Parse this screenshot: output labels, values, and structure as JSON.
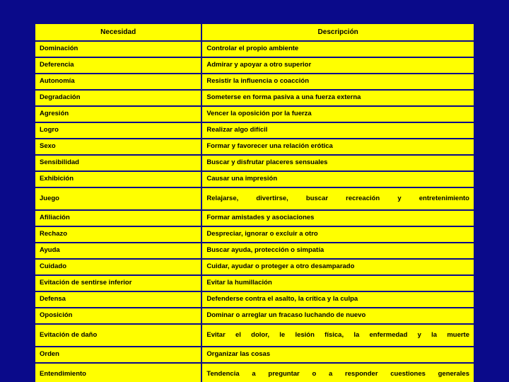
{
  "table": {
    "type": "table",
    "background_color": "#0a0a8a",
    "cell_bg_color": "#ffff00",
    "border_color": "#0a0a8a",
    "text_color": "#000000",
    "font_family": "Verdana",
    "header_fontsize_pt": 10,
    "body_fontsize_pt": 9.5,
    "font_weight": "bold",
    "columns": [
      {
        "key": "need",
        "label": "Necesidad",
        "width_pct": 38
      },
      {
        "key": "desc",
        "label": "Descripción",
        "width_pct": 62
      }
    ],
    "rows": [
      {
        "need": "Dominación",
        "desc": "Controlar el propio ambiente"
      },
      {
        "need": "Deferencia",
        "desc": "Admirar y apoyar a otro superior"
      },
      {
        "need": "Autonomía",
        "desc": "Resistir la influencia o coacción"
      },
      {
        "need": "Degradación",
        "desc": "Someterse en forma pasiva a una fuerza externa"
      },
      {
        "need": "Agresión",
        "desc": "Vencer la oposición por la fuerza"
      },
      {
        "need": "Logro",
        "desc": "Realizar algo difícil"
      },
      {
        "need": "Sexo",
        "desc": "Formar y favorecer una relación erótica"
      },
      {
        "need": "Sensibilidad",
        "desc": "Buscar y disfrutar placeres sensuales"
      },
      {
        "need": "Exhibición",
        "desc": "Causar una impresión"
      },
      {
        "need": "Juego",
        "desc": "Relajarse, divertirse, buscar recreación y entretenimiento",
        "justify": true,
        "tall": true
      },
      {
        "need": "Afiliación",
        "desc": "Formar amistades y asociaciones"
      },
      {
        "need": "Rechazo",
        "desc": "Despreciar, ignorar o excluir a otro"
      },
      {
        "need": "Ayuda",
        "desc": "Buscar ayuda, protección o simpatía"
      },
      {
        "need": "Cuidado",
        "desc": "Cuidar, ayudar o proteger a otro desamparado"
      },
      {
        "need": "Evitación de sentirse inferior",
        "desc": "Evitar la humillación"
      },
      {
        "need": "Defensa",
        "desc": "Defenderse contra el asalto, la crítica y la culpa"
      },
      {
        "need": "Oposición",
        "desc": "Dominar o arreglar un fracaso luchando de nuevo"
      },
      {
        "need": "Evitación de daño",
        "desc": "Evitar el dolor, le lesión física, la enfermedad y la muerte",
        "justify": true,
        "tall": true
      },
      {
        "need": "Orden",
        "desc": "Organizar las cosas"
      },
      {
        "need": "Entendimiento",
        "desc": "Tendencia a preguntar o a responder cuestiones generales",
        "justify": true,
        "tall": true
      }
    ]
  }
}
